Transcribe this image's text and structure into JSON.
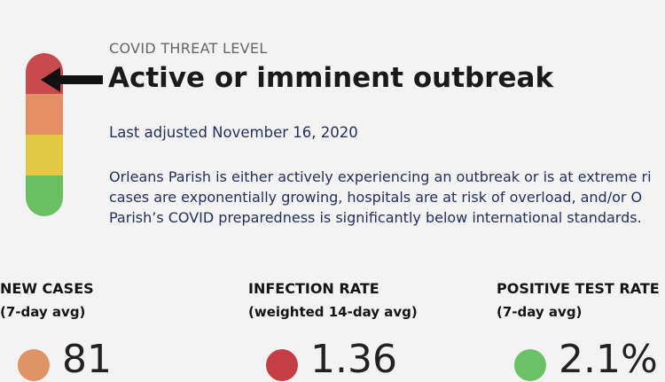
{
  "header": {
    "eyebrow": "COVID THREAT LEVEL",
    "title": "Active or imminent outbreak",
    "adjusted": "Last adjusted November 16, 2020"
  },
  "description": {
    "lines": [
      "Orleans Parish is either actively experiencing an outbreak or is at extreme ri",
      "cases are exponentially growing, hospitals are at risk of overload, and/or O",
      "Parish’s COVID preparedness is significantly below international standards."
    ]
  },
  "gauge": {
    "levels": [
      {
        "color": "#c94a4d"
      },
      {
        "color": "#e38f66"
      },
      {
        "color": "#e2c944"
      },
      {
        "color": "#6bbf63"
      }
    ],
    "indicator_icon": "arrow-left-icon"
  },
  "metrics": [
    {
      "label": "NEW CASES",
      "sub": "(7-day avg)",
      "value": "81",
      "dot_color": "#e09366"
    },
    {
      "label": "INFECTION RATE",
      "sub": "(weighted 14-day avg)",
      "value": "1.36",
      "dot_color": "#c43f45"
    },
    {
      "label": "POSITIVE TEST RATE",
      "sub": "(7-day avg)",
      "value": "2.1%",
      "dot_color": "#6cc067"
    }
  ]
}
